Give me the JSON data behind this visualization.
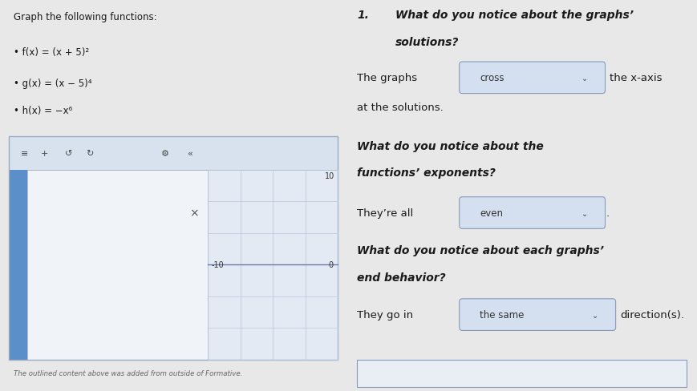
{
  "bg_color": "#e8e8e8",
  "left_bg": "#f2f2f2",
  "right_bg": "#f5f5f5",
  "title_text": "Graph the following functions:",
  "functions": [
    "f(x) = (x + 5)²",
    "g(x) = (x − 5)⁴",
    "h(x) = −x⁶"
  ],
  "toolbar_bg": "#d8e2ee",
  "graph_left_bg": "#e8eef6",
  "graph_right_bg": "#e4eaf4",
  "blue_bar": "#5b8fc9",
  "grid_color": "#b8c8dc",
  "widget_border": "#9aaabf",
  "footnote": "The outlined content above was added from outside of Formative.",
  "dropdown_bg": "#d4dff0",
  "dropdown_border": "#8899bb",
  "text_dark": "#1a1a1a",
  "text_mid": "#333333",
  "italic_bold_color": "#222244",
  "q_number": "1.",
  "q1_title_1": "What do you notice about the graphs’",
  "q1_title_2": "solutions?",
  "q1_pre": "The graphs",
  "q1_drop": "cross",
  "q1_post": "the x-axis",
  "q1_post2": "at the solutions.",
  "q2_title_1": "What do you notice about the",
  "q2_title_2": "functions’ exponents?",
  "q2_pre": "They’re all",
  "q2_drop": "even",
  "q3_title_1": "What do you notice about each graphs’",
  "q3_title_2": "end behavior?",
  "q3_pre": "They go in",
  "q3_drop": "the same",
  "q3_post": "direction(s)."
}
